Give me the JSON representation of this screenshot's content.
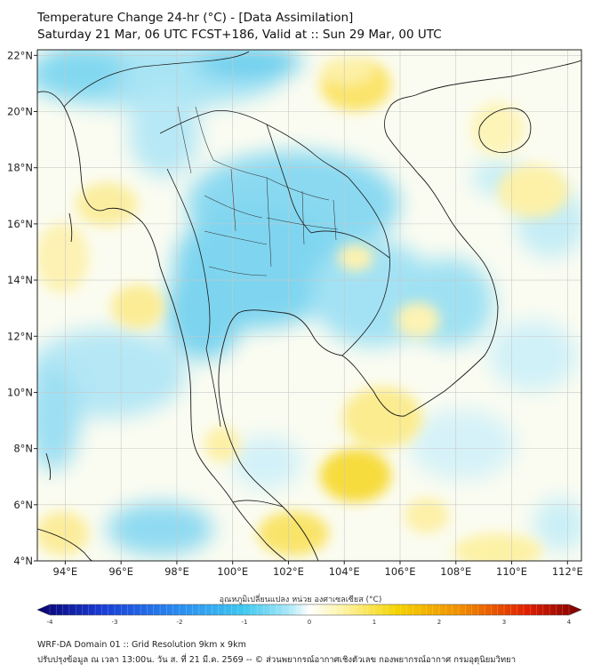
{
  "header": {
    "title": "Temperature Change 24-hr (°C) - [Data Assimilation]",
    "subtitle": "Saturday 21 Mar, 06 UTC FCST+186, Valid at :: Sun 29 Mar, 00 UTC"
  },
  "map": {
    "lon_range": [
      93,
      112.5
    ],
    "lat_range": [
      4,
      22.2
    ],
    "x_ticks": [
      "94°E",
      "96°E",
      "98°E",
      "100°E",
      "102°E",
      "104°E",
      "106°E",
      "108°E",
      "110°E",
      "112°E"
    ],
    "y_ticks": [
      "22°N",
      "20°N",
      "18°N",
      "16°N",
      "14°N",
      "12°N",
      "10°N",
      "8°N",
      "6°N",
      "4°N"
    ],
    "grid": true
  },
  "colorbar": {
    "label": "อุณหภูมิเปลี่ยนแปลง หน่วย องศาเซลเซียส (°C)",
    "ticks": [
      "-4",
      "-3",
      "-2",
      "-1",
      "0",
      "1",
      "2",
      "3",
      "4"
    ],
    "range": [
      -4,
      4
    ],
    "colors": [
      "#08006e",
      "#1a3dd6",
      "#2a8cf0",
      "#3ec8ef",
      "#a6e6f7",
      "#ffffff",
      "#fff4a8",
      "#f4d400",
      "#f08c00",
      "#e01e00",
      "#7a0000"
    ]
  },
  "footer": {
    "line1": "WRF-DA Domain 01 :: Grid Resolution 9km x 9km",
    "line2": "ปรับปรุงข้อมูล ณ เวลา 13:00น. วัน ส. ที่ 21 มี.ค. 2569 -- © ส่วนพยากรณ์อากาศเชิงตัวเลข กองพยากรณ์อากาศ กรมอุตุนิยมวิทยา"
  }
}
